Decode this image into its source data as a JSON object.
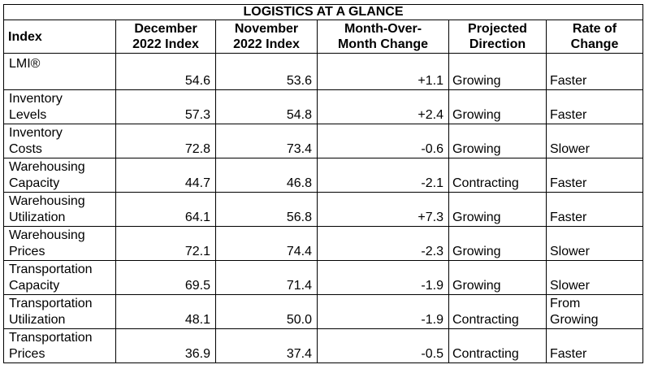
{
  "title": "LOGISTICS AT A GLANCE",
  "headers": {
    "index": "Index",
    "dec": [
      "December",
      "2022 Index"
    ],
    "nov": [
      "November",
      "2022 Index"
    ],
    "mom": [
      "Month-Over-",
      "Month Change"
    ],
    "dir": [
      "Projected",
      "Direction"
    ],
    "rate": [
      "Rate of",
      "Change"
    ]
  },
  "rows": [
    {
      "index": [
        "LMI®"
      ],
      "dec": "54.6",
      "nov": "53.6",
      "mom": "+1.1",
      "dir": "Growing",
      "rate": [
        "Faster"
      ]
    },
    {
      "index": [
        "Inventory",
        "Levels"
      ],
      "dec": "57.3",
      "nov": "54.8",
      "mom": "+2.4",
      "dir": "Growing",
      "rate": [
        "Faster"
      ]
    },
    {
      "index": [
        "Inventory",
        "Costs"
      ],
      "dec": "72.8",
      "nov": "73.4",
      "mom": "-0.6",
      "dir": "Growing",
      "rate": [
        "Slower"
      ]
    },
    {
      "index": [
        "Warehousing",
        "Capacity"
      ],
      "dec": "44.7",
      "nov": "46.8",
      "mom": "-2.1",
      "dir": "Contracting",
      "rate": [
        "Faster"
      ]
    },
    {
      "index": [
        "Warehousing",
        "Utilization"
      ],
      "dec": "64.1",
      "nov": "56.8",
      "mom": "+7.3",
      "dir": "Growing",
      "rate": [
        "Faster"
      ]
    },
    {
      "index": [
        "Warehousing",
        "Prices"
      ],
      "dec": "72.1",
      "nov": "74.4",
      "mom": "-2.3",
      "dir": "Growing",
      "rate": [
        "Slower"
      ]
    },
    {
      "index": [
        "Transportation",
        "Capacity"
      ],
      "dec": "69.5",
      "nov": "71.4",
      "mom": "-1.9",
      "dir": "Growing",
      "rate": [
        "Slower"
      ]
    },
    {
      "index": [
        "Transportation",
        "Utilization"
      ],
      "dec": "48.1",
      "nov": "50.0",
      "mom": "-1.9",
      "dir": "Contracting",
      "rate": [
        "From",
        "Growing"
      ]
    },
    {
      "index": [
        "Transportation",
        "Prices"
      ],
      "dec": "36.9",
      "nov": "37.4",
      "mom": "-0.5",
      "dir": "Contracting",
      "rate": [
        "Faster"
      ]
    }
  ]
}
